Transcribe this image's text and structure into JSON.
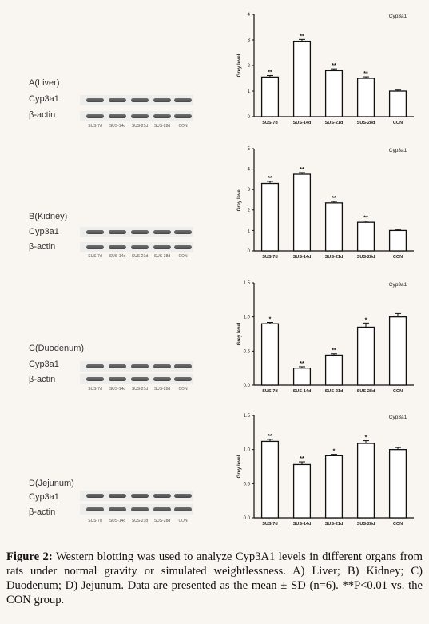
{
  "lane_labels": [
    "SUS-7d",
    "SUS-14d",
    "SUS-21d",
    "SUS-28d",
    "CON"
  ],
  "row_labels": {
    "target": "Cyp3a1",
    "control": "β-actin"
  },
  "caption": {
    "lead": "Figure 2:",
    "text": " Western blotting was used to analyze Cyp3A1 levels in different organs from rats under normal gravity or simulated weightlessness. A) Liver; B) Kidney; C) Duodenum; D) Jejunum. Data are presented as the mean ± SD (n=6). **P<0.01 vs. the CON group."
  },
  "chart_data": [
    {
      "type": "bar",
      "panel_label": "A(Liver)",
      "title": "Cyp3a1",
      "ylabel": "Grey level",
      "categories": [
        "SUS-7d",
        "SUS-14d",
        "SUS-21d",
        "SUS-28d",
        "CON"
      ],
      "values": [
        1.55,
        2.95,
        1.8,
        1.5,
        1.0
      ],
      "errors": [
        0.06,
        0.07,
        0.07,
        0.06,
        0.04
      ],
      "annotations": [
        "**",
        "**",
        "**",
        "**",
        ""
      ],
      "ylim": [
        0,
        4
      ],
      "yticks": [
        0,
        1,
        2,
        3,
        4
      ],
      "ytick_labels": [
        "0",
        "1",
        "2",
        "3",
        "4"
      ]
    },
    {
      "type": "bar",
      "panel_label": "B(Kidney)",
      "title": "Cyp3a1",
      "ylabel": "Grey level",
      "categories": [
        "SUS-7d",
        "SUS-14d",
        "SUS-21d",
        "SUS-28d",
        "CON"
      ],
      "values": [
        3.3,
        3.75,
        2.35,
        1.4,
        1.0
      ],
      "errors": [
        0.1,
        0.08,
        0.07,
        0.06,
        0.05
      ],
      "annotations": [
        "**",
        "**",
        "**",
        "**",
        ""
      ],
      "ylim": [
        0,
        5
      ],
      "yticks": [
        0,
        1,
        2,
        3,
        4,
        5
      ],
      "ytick_labels": [
        "0",
        "1",
        "2",
        "3",
        "4",
        "5"
      ]
    },
    {
      "type": "bar",
      "panel_label": "C(Duodenum)",
      "title": "Cyp3a1",
      "ylabel": "Grey level",
      "categories": [
        "SUS-7d",
        "SUS-14d",
        "SUS-21d",
        "SUS-28d",
        "CON"
      ],
      "values": [
        0.9,
        0.25,
        0.44,
        0.85,
        1.0
      ],
      "errors": [
        0.02,
        0.02,
        0.02,
        0.06,
        0.05
      ],
      "annotations": [
        "*",
        "**",
        "**",
        "*",
        ""
      ],
      "ylim": [
        0,
        1.5
      ],
      "yticks": [
        0,
        0.5,
        1.0,
        1.5
      ],
      "ytick_labels": [
        "0.0",
        "0.5",
        "1.0",
        "1.5"
      ]
    },
    {
      "type": "bar",
      "panel_label": "D(Jejunum)",
      "title": "Cyp3a1",
      "ylabel": "Grey level",
      "categories": [
        "SUS-7d",
        "SUS-14d",
        "SUS-21d",
        "SUS-28d",
        "CON"
      ],
      "values": [
        1.12,
        0.78,
        0.91,
        1.09,
        1.0
      ],
      "errors": [
        0.03,
        0.04,
        0.02,
        0.04,
        0.03
      ],
      "annotations": [
        "**",
        "**",
        "*",
        "*",
        ""
      ],
      "ylim": [
        0,
        1.5
      ],
      "yticks": [
        0,
        0.5,
        1.0,
        1.5
      ],
      "ytick_labels": [
        "0.0",
        "0.5",
        "1.0",
        "1.5"
      ]
    }
  ]
}
